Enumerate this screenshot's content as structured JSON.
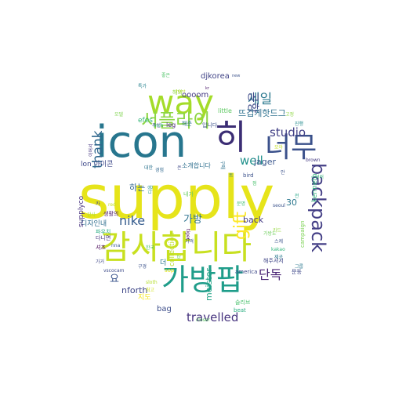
{
  "words": [
    {
      "text": "supply",
      "color": "#e6e41a"
    },
    {
      "text": "icon",
      "color": "#27768e"
    },
    {
      "text": "감사합니다",
      "color": "#c8e020"
    },
    {
      "text": "way",
      "color": "#a4dc2a"
    },
    {
      "text": "가방팝",
      "color": "#1f9d8a"
    },
    {
      "text": "너무",
      "color": "#3b518b"
    },
    {
      "text": "backpack",
      "color": "#433e85"
    },
    {
      "text": "히",
      "color": "#3b2d74"
    },
    {
      "text": "서플라이",
      "color": "#8dd644"
    },
    {
      "text": "세일",
      "color": "#2a788e"
    },
    {
      "text": "thank",
      "color": "#31688e"
    },
    {
      "text": "공항",
      "color": "#3e4a89"
    },
    {
      "text": "studio",
      "color": "#424086"
    },
    {
      "text": "nike",
      "color": "#365c8d"
    },
    {
      "text": "단독",
      "color": "#482173"
    },
    {
      "text": "travelled",
      "color": "#46337e"
    },
    {
      "text": "gift",
      "color": "#fde725"
    },
    {
      "text": "well",
      "color": "#21918c"
    },
    {
      "text": "가방",
      "color": "#2c718e"
    },
    {
      "text": "뜨겁게핫드그",
      "color": "#2d708e"
    },
    {
      "text": "jager",
      "color": "#39568c"
    },
    {
      "text": "djkorea",
      "color": "#414487"
    },
    {
      "text": "oooom",
      "color": "#443983"
    },
    {
      "text": "요",
      "color": "#3a548c"
    },
    {
      "text": "meister",
      "color": "#20a386"
    },
    {
      "text": "nforth",
      "color": "#3f4788"
    },
    {
      "text": "30",
      "color": "#2a778e"
    },
    {
      "text": "back",
      "color": "#443b84"
    },
    {
      "text": "하는",
      "color": "#31678e"
    },
    {
      "text": "bag",
      "color": "#3d4e8a"
    },
    {
      "text": "efes",
      "color": "#35b779"
    },
    {
      "text": "lon 아이콘",
      "color": "#3e4989"
    },
    {
      "text": "collection",
      "color": "#bddf26"
    },
    {
      "text": "디자인내",
      "color": "#2e6e8e"
    },
    {
      "text": "kenneth",
      "color": "#2fb47c"
    },
    {
      "text": "supplyco",
      "color": "#46307e"
    },
    {
      "text": "더",
      "color": "#2a768e"
    },
    {
      "text": "little",
      "color": "#5ec962"
    },
    {
      "text": "leg",
      "color": "#482677"
    },
    {
      "text": "해외",
      "color": "#93d741"
    },
    {
      "text": "소개합니다",
      "color": "#2e6f8e"
    },
    {
      "text": "seoul",
      "color": "#3b528b"
    },
    {
      "text": "brown",
      "color": "#443a83"
    },
    {
      "text": "campaign",
      "color": "#7ad151"
    },
    {
      "text": "beat",
      "color": "#28ae80"
    },
    {
      "text": "america",
      "color": "#3e4a89"
    },
    {
      "text": "슬리브",
      "color": "#4ac16d"
    },
    {
      "text": "해주셔서",
      "color": "#404688"
    },
    {
      "text": "문동",
      "color": "#3f4889"
    },
    {
      "text": "sop",
      "color": "#e5e419"
    },
    {
      "text": "셔츠",
      "color": "#440154"
    },
    {
      "text": "다니면",
      "color": "#46337e"
    },
    {
      "text": "파우치",
      "color": "#25ab82"
    },
    {
      "text": "생활의",
      "color": "#471365"
    },
    {
      "text": "감사",
      "color": "#a8db34"
    },
    {
      "text": "지도",
      "color": "#f4e61e"
    },
    {
      "text": "vscocam",
      "color": "#3e4c8a"
    },
    {
      "text": "다음",
      "color": "#21918c"
    },
    {
      "text": "입니다",
      "color": "#3b528b"
    },
    {
      "text": "해준",
      "color": "#2c728e"
    },
    {
      "text": "주신",
      "color": "#414287"
    },
    {
      "text": "모델",
      "color": "#7fd34e"
    },
    {
      "text": "특가",
      "color": "#26828e"
    },
    {
      "text": "좋은",
      "color": "#50c46a"
    },
    {
      "text": "bird",
      "color": "#3b518b"
    },
    {
      "text": "구매",
      "color": "#2d708e"
    },
    {
      "text": "이어서",
      "color": "#453781"
    },
    {
      "text": "가거",
      "color": "#3f4788"
    },
    {
      "text": "구경",
      "color": "#3b528b"
    },
    {
      "text": "closer",
      "color": "#5ec962"
    },
    {
      "text": "sloth",
      "color": "#b5de2b"
    },
    {
      "text": "최고",
      "color": "#d2e21b"
    },
    {
      "text": "inch",
      "color": "#27ad81"
    },
    {
      "text": "한국",
      "color": "#4ac16d"
    },
    {
      "text": "제공",
      "color": "#2a788e"
    },
    {
      "text": "kakao",
      "color": "#31b57b"
    },
    {
      "text": "tiger",
      "color": "#440154"
    },
    {
      "text": "hunt",
      "color": "#b8de29"
    },
    {
      "text": "가격",
      "color": "#3b528b"
    },
    {
      "text": "내가",
      "color": "#65cb5e"
    },
    {
      "text": "분명",
      "color": "#42be71"
    },
    {
      "text": "진행",
      "color": "#238a8d"
    },
    {
      "text": "고정",
      "color": "#8fd744"
    },
    {
      "text": "경험",
      "color": "#31688e"
    },
    {
      "text": "대한",
      "color": "#2c738e"
    },
    {
      "text": "red",
      "color": "#c0df25"
    },
    {
      "text": "nna",
      "color": "#38598c"
    },
    {
      "text": "new",
      "color": "#3b528b"
    },
    {
      "text": "tr",
      "color": "#5ec962"
    },
    {
      "text": "kr",
      "color": "#481668"
    },
    {
      "text": "안",
      "color": "#3b528b"
    },
    {
      "text": "그룹",
      "color": "#2a788e"
    },
    {
      "text": "여러",
      "color": "#35b779"
    },
    {
      "text": "은",
      "color": "#3e4989"
    },
    {
      "text": "가방도",
      "color": "#6ccd5a"
    },
    {
      "text": "카드",
      "color": "#95d840"
    },
    {
      "text": "모아",
      "color": "#c2df23"
    },
    {
      "text": "스케",
      "color": "#3b528b"
    },
    {
      "text": "카",
      "color": "#404588"
    },
    {
      "text": "트",
      "color": "#2a788e"
    },
    {
      "text": "점",
      "color": "#4ac16d"
    },
    {
      "text": "전",
      "color": "#22a785"
    }
  ]
}
